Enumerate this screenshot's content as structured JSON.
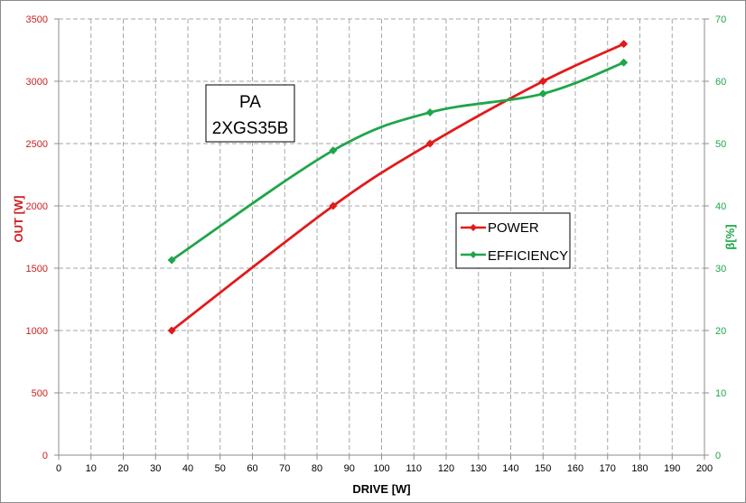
{
  "chart_data": {
    "type": "line",
    "title_box": [
      "PA",
      "2XGS35B"
    ],
    "xlabel": "DRIVE [W]",
    "ylabel_left": "OUT [W]",
    "ylabel_right": "β[%]",
    "xlim": [
      0,
      200
    ],
    "x_ticks": [
      0,
      10,
      20,
      30,
      40,
      50,
      60,
      70,
      80,
      90,
      100,
      110,
      120,
      130,
      140,
      150,
      160,
      170,
      180,
      190,
      200
    ],
    "ylim_left": [
      0,
      3500
    ],
    "y_ticks_left": [
      0,
      500,
      1000,
      1500,
      2000,
      2500,
      3000,
      3500
    ],
    "ylim_right": [
      0,
      70
    ],
    "y_ticks_right": [
      0,
      10,
      20,
      30,
      40,
      50,
      60,
      70
    ],
    "grid": true,
    "legend_position": "center-right",
    "series": [
      {
        "name": "POWER",
        "axis": "left",
        "color": "#e21a1a",
        "x": [
          35,
          85,
          115,
          150,
          175
        ],
        "y": [
          1000,
          2000,
          2500,
          3000,
          3300
        ]
      },
      {
        "name": "EFFICIENCY",
        "axis": "right",
        "color": "#1fa64a",
        "x": [
          35,
          85,
          115,
          150,
          175
        ],
        "y": [
          31.3,
          48.9,
          55,
          58,
          63
        ]
      }
    ],
    "colors": {
      "left_axis": "#cc1f1f",
      "right_axis": "#1fa64a",
      "grid": "#a6a6a6",
      "axis": "#8c8c8c"
    }
  }
}
